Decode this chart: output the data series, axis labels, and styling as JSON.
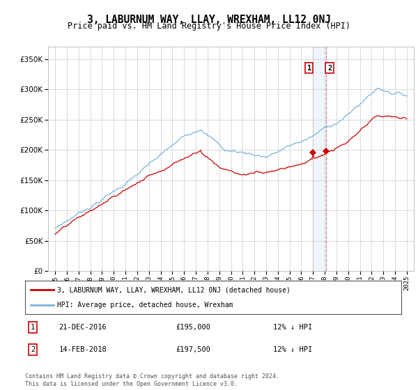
{
  "title": "3, LABURNUM WAY, LLAY, WREXHAM, LL12 0NJ",
  "subtitle": "Price paid vs. HM Land Registry's House Price Index (HPI)",
  "ytick_values": [
    0,
    50000,
    100000,
    150000,
    200000,
    250000,
    300000,
    350000
  ],
  "ylim": [
    0,
    370000
  ],
  "sale1": {
    "date": "21-DEC-2016",
    "price": 195000,
    "hpi_pct": "12% ↓ HPI",
    "label": "1"
  },
  "sale2": {
    "date": "14-FEB-2018",
    "price": 197500,
    "hpi_pct": "12% ↓ HPI",
    "label": "2"
  },
  "sale1_x": 2016.97,
  "sale2_x": 2018.12,
  "hpi_color": "#7ab4d8",
  "price_color": "#cc0000",
  "dashed_color": "#e88080",
  "shade_color": "#d0e8f8",
  "legend_label1": "3, LABURNUM WAY, LLAY, WREXHAM, LL12 0NJ (detached house)",
  "legend_label2": "HPI: Average price, detached house, Wrexham",
  "footer": "Contains HM Land Registry data © Crown copyright and database right 2024.\nThis data is licensed under the Open Government Licence v3.0.",
  "background_color": "#ffffff",
  "grid_color": "#cccccc"
}
